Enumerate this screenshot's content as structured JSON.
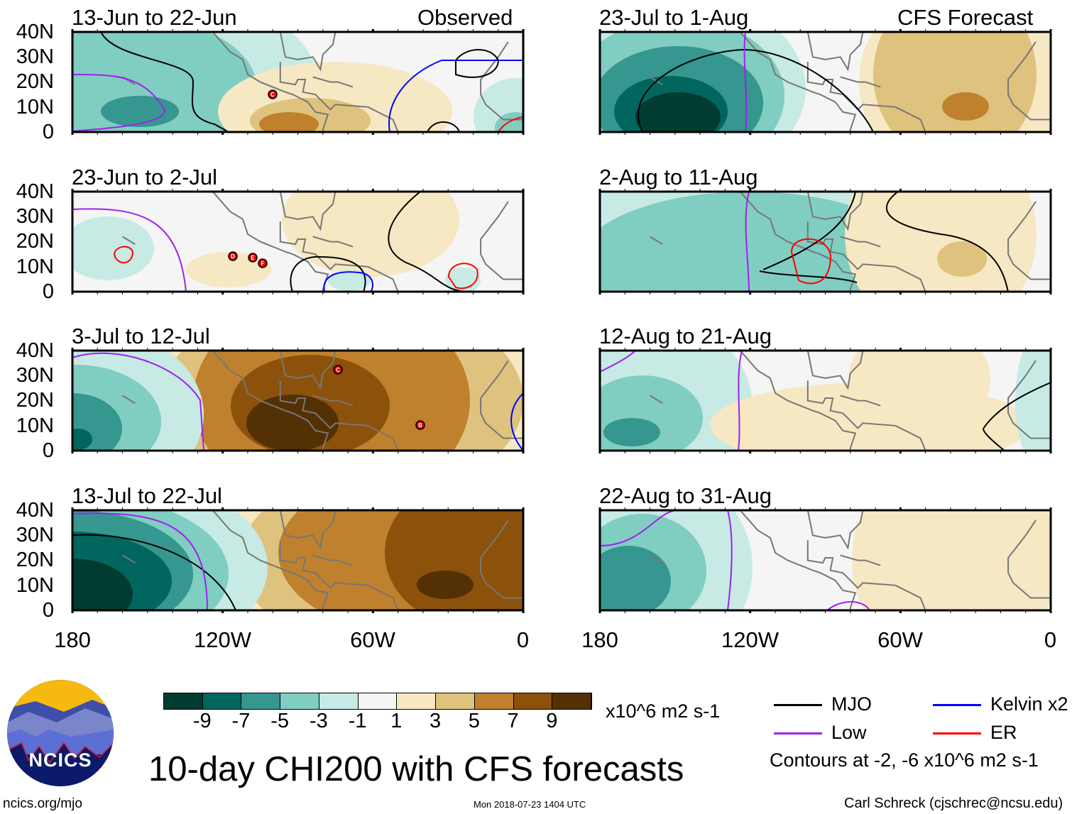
{
  "column_headers": {
    "left": "Observed",
    "right": "CFS Forecast"
  },
  "panels": [
    {
      "title": "13-Jun to 22-Jun",
      "storms": [
        "C"
      ]
    },
    {
      "title": "23-Jun to 2-Jul",
      "storms": [
        "D",
        "E",
        "F"
      ]
    },
    {
      "title": "3-Jul to 12-Jul",
      "storms": [
        "C",
        "B"
      ]
    },
    {
      "title": "13-Jul to 22-Jul",
      "storms": []
    },
    {
      "title": "23-Jul to 1-Aug",
      "storms": []
    },
    {
      "title": "2-Aug to 11-Aug",
      "storms": []
    },
    {
      "title": "12-Aug to 21-Aug",
      "storms": []
    },
    {
      "title": "22-Aug to 31-Aug",
      "storms": []
    }
  ],
  "lat_ticks": [
    "40N",
    "30N",
    "20N",
    "10N",
    "0"
  ],
  "lon_ticks": [
    "180",
    "120W",
    "60W",
    "0"
  ],
  "colorbar": {
    "levels": [
      "-9",
      "-7",
      "-5",
      "-3",
      "-1",
      "1",
      "3",
      "5",
      "7",
      "9"
    ],
    "colors": [
      "#003c30",
      "#01665e",
      "#35978f",
      "#80cdc1",
      "#c7eae5",
      "#f5f5f5",
      "#f6e8c3",
      "#dfc27d",
      "#bf812d",
      "#8c510a",
      "#543005"
    ],
    "units": "x10^6 m2 s-1"
  },
  "legend": {
    "items": [
      {
        "label": "MJO",
        "color": "#000000"
      },
      {
        "label": "Kelvin x2",
        "color": "#0000ff"
      },
      {
        "label": "Low",
        "color": "#a020f0"
      },
      {
        "label": "ER",
        "color": "#ff0000"
      }
    ],
    "note": "Contours at -2, -6 x10^6 m2 s-1"
  },
  "title": "10-day CHI200 with CFS forecasts",
  "logo_text": "NCICS",
  "footer": {
    "url": "ncics.org/mjo",
    "timestamp": "Mon 2018-07-23 1404 UTC",
    "author": "Carl Schreck (cjschrec@ncsu.edu)"
  }
}
